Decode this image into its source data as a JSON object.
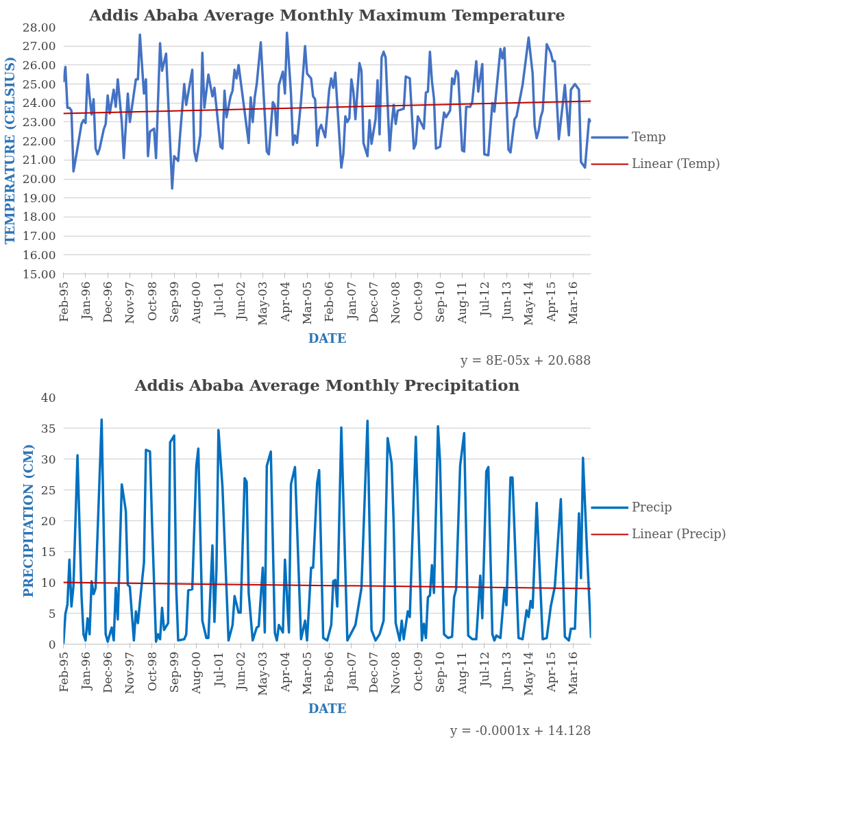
{
  "chart_data": [
    {
      "type": "line",
      "title": "Addis Ababa Average Monthly Maximum Temperature",
      "xlabel": "DATE",
      "ylabel": "TEMPERATURE (CELSIUS)",
      "xlim": [
        "1995-02",
        "2016-12"
      ],
      "xticks": [
        {
          "value": "1995-02",
          "label": "Feb-95"
        },
        {
          "value": "1996-01",
          "label": "Jan-96"
        },
        {
          "value": "1996-12",
          "label": "Dec-96"
        },
        {
          "value": "1997-11",
          "label": "Nov-97"
        },
        {
          "value": "1998-10",
          "label": "Oct-98"
        },
        {
          "value": "1999-09",
          "label": "Sep-99"
        },
        {
          "value": "2000-08",
          "label": "Aug-00"
        },
        {
          "value": "2001-07",
          "label": "Jul-01"
        },
        {
          "value": "2002-06",
          "label": "Jun-02"
        },
        {
          "value": "2003-05",
          "label": "May-03"
        },
        {
          "value": "2004-04",
          "label": "Apr-04"
        },
        {
          "value": "2005-03",
          "label": "Mar-05"
        },
        {
          "value": "2006-02",
          "label": "Feb-06"
        },
        {
          "value": "2007-01",
          "label": "Jan-07"
        },
        {
          "value": "2007-12",
          "label": "Dec-07"
        },
        {
          "value": "2008-11",
          "label": "Nov-08"
        },
        {
          "value": "2009-10",
          "label": "Oct-09"
        },
        {
          "value": "2010-09",
          "label": "Sep-10"
        },
        {
          "value": "2011-08",
          "label": "Aug-11"
        },
        {
          "value": "2012-07",
          "label": "Jul-12"
        },
        {
          "value": "2013-06",
          "label": "Jun-13"
        },
        {
          "value": "2014-05",
          "label": "May-14"
        },
        {
          "value": "2015-04",
          "label": "Apr-15"
        },
        {
          "value": "2016-03",
          "label": "Mar-16"
        }
      ],
      "ylim": [
        15,
        28
      ],
      "yticks": [
        {
          "value": 15,
          "label": "15.00"
        },
        {
          "value": 16,
          "label": "16.00"
        },
        {
          "value": 17,
          "label": "17.00"
        },
        {
          "value": 18,
          "label": "18.00"
        },
        {
          "value": 19,
          "label": "19.00"
        },
        {
          "value": 20,
          "label": "20.00"
        },
        {
          "value": 21,
          "label": "21.00"
        },
        {
          "value": 22,
          "label": "22.00"
        },
        {
          "value": 23,
          "label": "23.00"
        },
        {
          "value": 24,
          "label": "24.00"
        },
        {
          "value": 25,
          "label": "25.00"
        },
        {
          "value": 26,
          "label": "26.00"
        },
        {
          "value": 27,
          "label": "27.00"
        },
        {
          "value": 28,
          "label": "28.00"
        }
      ],
      "grid": "y",
      "legend": "right",
      "annotations": [
        "y = 8E-05x + 20.688"
      ],
      "series": [
        {
          "name": "Temp",
          "color": "#4472c4",
          "x": [
            "1995-02",
            "1995-03",
            "1995-04",
            "1995-05",
            "1995-06",
            "1995-07",
            "1995-08",
            "1995-11",
            "1995-12",
            "1996-01",
            "1996-02",
            "1996-03",
            "1996-04",
            "1996-05",
            "1996-06",
            "1996-07",
            "1996-08",
            "1996-10",
            "1996-11",
            "1996-12",
            "1997-01",
            "1997-03",
            "1997-04",
            "1997-05",
            "1997-07",
            "1997-08",
            "1997-10",
            "1997-11",
            "1998-02",
            "1998-03",
            "1998-04",
            "1998-06",
            "1998-07",
            "1998-08",
            "1998-09",
            "1998-11",
            "1998-12",
            "1999-02",
            "1999-03",
            "1999-05",
            "1999-06",
            "1999-08",
            "1999-09",
            "1999-11",
            "1999-12",
            "2000-02",
            "2000-03",
            "2000-06",
            "2000-07",
            "2000-08",
            "2000-10",
            "2000-11",
            "2000-12",
            "2001-02",
            "2001-04",
            "2001-05",
            "2001-08",
            "2001-09",
            "2001-10",
            "2001-11",
            "2002-01",
            "2002-02",
            "2002-03",
            "2002-04",
            "2002-05",
            "2002-10",
            "2002-11",
            "2002-12",
            "2003-01",
            "2003-02",
            "2003-04",
            "2003-07",
            "2003-08",
            "2003-10",
            "2003-11",
            "2003-12",
            "2004-01",
            "2004-03",
            "2004-04",
            "2004-05",
            "2004-07",
            "2004-08",
            "2004-09",
            "2004-10",
            "2004-12",
            "2005-02",
            "2005-03",
            "2005-05",
            "2005-06",
            "2005-07",
            "2005-08",
            "2005-09",
            "2005-10",
            "2005-12",
            "2006-02",
            "2006-03",
            "2006-04",
            "2006-05",
            "2006-08",
            "2006-09",
            "2006-10",
            "2006-11",
            "2006-12",
            "2007-01",
            "2007-02",
            "2007-03",
            "2007-05",
            "2007-06",
            "2007-07",
            "2007-09",
            "2007-10",
            "2007-11",
            "2008-01",
            "2008-02",
            "2008-03",
            "2008-04",
            "2008-05",
            "2008-06",
            "2008-08",
            "2008-09",
            "2008-10",
            "2008-11",
            "2008-12",
            "2009-03",
            "2009-04",
            "2009-06",
            "2009-08",
            "2009-09",
            "2009-10",
            "2010-01",
            "2010-02",
            "2010-03",
            "2010-04",
            "2010-05",
            "2010-06",
            "2010-07",
            "2010-09",
            "2010-11",
            "2010-12",
            "2011-02",
            "2011-03",
            "2011-04",
            "2011-05",
            "2011-06",
            "2011-08",
            "2011-09",
            "2011-10",
            "2011-12",
            "2012-01",
            "2012-03",
            "2012-04",
            "2012-06",
            "2012-07",
            "2012-09",
            "2012-11",
            "2012-12",
            "2013-03",
            "2013-04",
            "2013-05",
            "2013-07",
            "2013-08",
            "2013-10",
            "2013-11",
            "2014-02",
            "2014-05",
            "2014-07",
            "2014-08",
            "2014-09",
            "2014-10",
            "2014-11",
            "2014-12",
            "2015-02",
            "2015-04",
            "2015-05",
            "2015-06",
            "2015-08",
            "2015-11",
            "2016-01",
            "2016-02",
            "2016-04",
            "2016-06",
            "2016-07",
            "2016-09",
            "2016-11",
            "2016-12"
          ],
          "values": [
            25.1,
            25.9,
            23.75,
            23.75,
            23.6,
            20.4,
            21.0,
            22.9,
            23.1,
            22.95,
            25.5,
            24.35,
            23.4,
            24.2,
            21.6,
            21.3,
            21.6,
            22.6,
            22.9,
            24.4,
            23.45,
            24.7,
            23.8,
            25.25,
            23.0,
            21.1,
            24.5,
            23.0,
            25.25,
            25.25,
            27.6,
            24.5,
            25.25,
            21.2,
            22.5,
            22.65,
            21.1,
            27.15,
            25.7,
            26.6,
            24.25,
            19.5,
            21.2,
            20.95,
            22.4,
            25.0,
            23.9,
            25.75,
            21.45,
            20.95,
            22.3,
            26.65,
            23.75,
            25.5,
            24.35,
            24.8,
            21.7,
            21.6,
            24.65,
            23.25,
            24.35,
            24.65,
            25.75,
            25.3,
            26.0,
            21.9,
            24.3,
            23.0,
            24.3,
            25.0,
            27.2,
            21.45,
            21.3,
            24.05,
            23.85,
            22.3,
            24.95,
            25.65,
            24.5,
            27.7,
            24.5,
            21.8,
            22.3,
            21.9,
            24.1,
            27.0,
            25.55,
            25.3,
            24.35,
            24.2,
            21.75,
            22.6,
            22.85,
            22.2,
            24.7,
            25.3,
            24.8,
            25.6,
            20.6,
            21.3,
            23.3,
            23.0,
            23.2,
            25.25,
            24.6,
            23.15,
            26.1,
            25.7,
            21.9,
            21.2,
            23.1,
            21.85,
            23.15,
            25.2,
            22.35,
            26.4,
            26.7,
            26.4,
            21.5,
            22.9,
            23.9,
            22.9,
            23.6,
            23.7,
            25.4,
            25.3,
            21.6,
            21.85,
            23.3,
            22.65,
            24.55,
            24.6,
            26.7,
            25.15,
            24.25,
            21.6,
            21.7,
            23.5,
            23.25,
            23.6,
            25.3,
            25.0,
            25.7,
            25.55,
            21.5,
            21.45,
            23.8,
            23.8,
            24.05,
            26.2,
            24.6,
            26.05,
            21.3,
            21.25,
            24.0,
            23.55,
            26.85,
            26.35,
            26.9,
            21.55,
            21.4,
            23.15,
            23.3,
            24.95,
            27.45,
            25.55,
            22.8,
            22.15,
            22.55,
            23.25,
            23.6,
            27.1,
            26.65,
            26.2,
            26.2,
            22.1,
            24.95,
            22.3,
            24.7,
            25.0,
            24.7,
            20.9,
            20.6,
            23.15,
            23.0
          ]
        },
        {
          "name": "Linear (Temp)",
          "color": "#c00000",
          "x": [
            "1995-02",
            "2016-12"
          ],
          "values": [
            23.45,
            24.1
          ]
        }
      ]
    },
    {
      "type": "line",
      "title": "Addis Ababa Average Monthly Precipitation",
      "xlabel": "DATE",
      "ylabel": "PRECIPITATION (CM)",
      "xlim": [
        "1995-02",
        "2016-12"
      ],
      "xticks": [
        {
          "value": "1995-02",
          "label": "Feb-95"
        },
        {
          "value": "1996-01",
          "label": "Jan-96"
        },
        {
          "value": "1996-12",
          "label": "Dec-96"
        },
        {
          "value": "1997-11",
          "label": "Nov-97"
        },
        {
          "value": "1998-10",
          "label": "Oct-98"
        },
        {
          "value": "1999-09",
          "label": "Sep-99"
        },
        {
          "value": "2000-08",
          "label": "Aug-00"
        },
        {
          "value": "2001-07",
          "label": "Jul-01"
        },
        {
          "value": "2002-06",
          "label": "Jun-02"
        },
        {
          "value": "2003-05",
          "label": "May-03"
        },
        {
          "value": "2004-04",
          "label": "Apr-04"
        },
        {
          "value": "2005-03",
          "label": "Mar-05"
        },
        {
          "value": "2006-02",
          "label": "Feb-06"
        },
        {
          "value": "2007-01",
          "label": "Jan-07"
        },
        {
          "value": "2007-12",
          "label": "Dec-07"
        },
        {
          "value": "2008-11",
          "label": "Nov-08"
        },
        {
          "value": "2009-10",
          "label": "Oct-09"
        },
        {
          "value": "2010-09",
          "label": "Sep-10"
        },
        {
          "value": "2011-08",
          "label": "Aug-11"
        },
        {
          "value": "2012-07",
          "label": "Jul-12"
        },
        {
          "value": "2013-06",
          "label": "Jun-13"
        },
        {
          "value": "2014-05",
          "label": "May-14"
        },
        {
          "value": "2015-04",
          "label": "Apr-15"
        },
        {
          "value": "2016-03",
          "label": "Mar-16"
        }
      ],
      "ylim": [
        0,
        40
      ],
      "yticks": [
        0,
        5,
        10,
        15,
        20,
        25,
        30,
        35,
        40
      ],
      "grid": "y",
      "legend": "right",
      "annotations": [
        "y = -0.0001x + 14.128"
      ],
      "series": [
        {
          "name": "Precip",
          "color": "#0070c0",
          "x": [
            "1995-02",
            "1995-03",
            "1995-04",
            "1995-05",
            "1995-06",
            "1995-07",
            "1995-09",
            "1995-11",
            "1995-12",
            "1996-01",
            "1996-02",
            "1996-03",
            "1996-04",
            "1996-05",
            "1996-06",
            "1996-09",
            "1996-11",
            "1996-12",
            "1997-02",
            "1997-03",
            "1997-04",
            "1997-05",
            "1997-07",
            "1997-09",
            "1997-10",
            "1997-11",
            "1998-01",
            "1998-02",
            "1998-03",
            "1998-04",
            "1998-06",
            "1998-07",
            "1998-09",
            "1998-10",
            "1998-12",
            "1999-01",
            "1999-02",
            "1999-03",
            "1999-04",
            "1999-06",
            "1999-07",
            "1999-09",
            "1999-10",
            "1999-11",
            "2000-02",
            "2000-03",
            "2000-04",
            "2000-06",
            "2000-08",
            "2000-09",
            "2000-11",
            "2001-01",
            "2001-02",
            "2001-04",
            "2001-05",
            "2001-06",
            "2001-07",
            "2001-09",
            "2001-12",
            "2002-02",
            "2002-03",
            "2002-05",
            "2002-06",
            "2002-08",
            "2002-09",
            "2002-10",
            "2002-12",
            "2003-02",
            "2003-03",
            "2003-05",
            "2003-06",
            "2003-07",
            "2003-09",
            "2003-11",
            "2003-12",
            "2004-01",
            "2004-03",
            "2004-04",
            "2004-06",
            "2004-07",
            "2004-09",
            "2004-12",
            "2005-02",
            "2005-03",
            "2005-05",
            "2005-06",
            "2005-08",
            "2005-09",
            "2005-11",
            "2006-01",
            "2006-03",
            "2006-04",
            "2006-05",
            "2006-06",
            "2006-08",
            "2006-11",
            "2007-03",
            "2007-06",
            "2007-09",
            "2007-11",
            "2008-01",
            "2008-03",
            "2008-05",
            "2008-07",
            "2008-09",
            "2008-10",
            "2008-11",
            "2009-01",
            "2009-02",
            "2009-03",
            "2009-05",
            "2009-06",
            "2009-09",
            "2009-12",
            "2010-01",
            "2010-02",
            "2010-03",
            "2010-04",
            "2010-05",
            "2010-06",
            "2010-08",
            "2010-09",
            "2010-11",
            "2011-01",
            "2011-03",
            "2011-04",
            "2011-05",
            "2011-07",
            "2011-09",
            "2011-11",
            "2012-01",
            "2012-03",
            "2012-05",
            "2012-06",
            "2012-08",
            "2012-09",
            "2012-11",
            "2012-12",
            "2013-01",
            "2013-03",
            "2013-05",
            "2013-06",
            "2013-08",
            "2013-09",
            "2013-12",
            "2014-02",
            "2014-04",
            "2014-05",
            "2014-06",
            "2014-07",
            "2014-09",
            "2014-12",
            "2015-02",
            "2015-04",
            "2015-06",
            "2015-09",
            "2015-11",
            "2016-01",
            "2016-02",
            "2016-04",
            "2016-06",
            "2016-07",
            "2016-08",
            "2016-10",
            "2016-12"
          ],
          "values": [
            0,
            4.9,
            6.4,
            13.7,
            6.1,
            9.4,
            30.6,
            7.9,
            1.6,
            0.6,
            4.2,
            1.6,
            10.2,
            8.1,
            9.1,
            36.4,
            1.6,
            0.4,
            2.7,
            0.6,
            9.1,
            4.0,
            25.9,
            21.6,
            9.6,
            9.3,
            0.6,
            5.3,
            3.4,
            6.8,
            13.2,
            31.5,
            31.2,
            19.9,
            0.4,
            1.6,
            0.8,
            5.9,
            2.3,
            3.4,
            32.7,
            33.8,
            9.4,
            0.6,
            0.8,
            1.6,
            8.7,
            8.9,
            28.9,
            31.7,
            3.8,
            1.0,
            1.0,
            16.0,
            3.6,
            12.1,
            34.7,
            25.4,
            0.6,
            3.1,
            7.8,
            5.1,
            5.1,
            26.9,
            26.3,
            8.3,
            0.6,
            2.7,
            2.9,
            12.4,
            1.9,
            28.9,
            31.2,
            1.8,
            0.6,
            3.1,
            1.9,
            13.7,
            1.9,
            25.9,
            28.7,
            0.8,
            3.8,
            0.6,
            12.4,
            12.4,
            26.1,
            28.2,
            1.0,
            0.6,
            3.1,
            10.2,
            10.4,
            6.1,
            35.1,
            0.6,
            3.1,
            9.1,
            36.2,
            2.3,
            0.6,
            1.6,
            3.8,
            33.4,
            29.3,
            19.6,
            3.4,
            0.6,
            3.8,
            0.8,
            5.3,
            4.4,
            33.6,
            0.6,
            3.3,
            1.0,
            7.6,
            7.9,
            12.8,
            8.3,
            35.3,
            29.7,
            1.6,
            1.0,
            1.2,
            7.6,
            8.9,
            28.9,
            34.2,
            1.4,
            0.8,
            0.8,
            11.1,
            4.2,
            28.0,
            28.7,
            1.6,
            0.6,
            1.4,
            1.0,
            8.9,
            6.3,
            27.0,
            27.0,
            1.0,
            0.8,
            5.5,
            4.4,
            7.0,
            5.9,
            22.9,
            0.8,
            1.0,
            6.1,
            9.3,
            23.5,
            1.2,
            0.6,
            2.5,
            2.5,
            21.2,
            10.7,
            30.2,
            15.1,
            1.0
          ]
        },
        {
          "name": "Linear (Precip)",
          "color": "#c00000",
          "x": [
            "1995-02",
            "2016-12"
          ],
          "values": [
            10.0,
            9.0
          ]
        }
      ]
    }
  ]
}
